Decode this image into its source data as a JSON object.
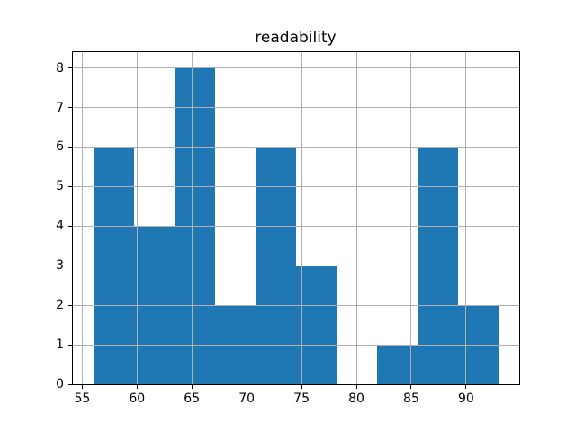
{
  "title": "readability",
  "colors": {
    "bar": "#1f77b4",
    "grid": "#b0b0b0",
    "spine": "#000000",
    "background": "#ffffff",
    "text": "#000000"
  },
  "chart_data": {
    "type": "bar",
    "subtype": "histogram",
    "title": "readability",
    "xlabel": "",
    "ylabel": "",
    "bin_edges": [
      56,
      59.7,
      63.4,
      67.1,
      70.8,
      74.5,
      78.2,
      81.9,
      85.6,
      89.3,
      93
    ],
    "values": [
      6,
      4,
      8,
      2,
      6,
      3,
      0,
      1,
      6,
      2
    ],
    "xlim": [
      54.15,
      94.85
    ],
    "ylim": [
      0,
      8.4
    ],
    "x_ticks": [
      55,
      60,
      65,
      70,
      75,
      80,
      85,
      90
    ],
    "y_ticks": [
      0,
      1,
      2,
      3,
      4,
      5,
      6,
      7,
      8
    ],
    "grid": true,
    "grid_above_bars": true,
    "legend_position": "none"
  }
}
